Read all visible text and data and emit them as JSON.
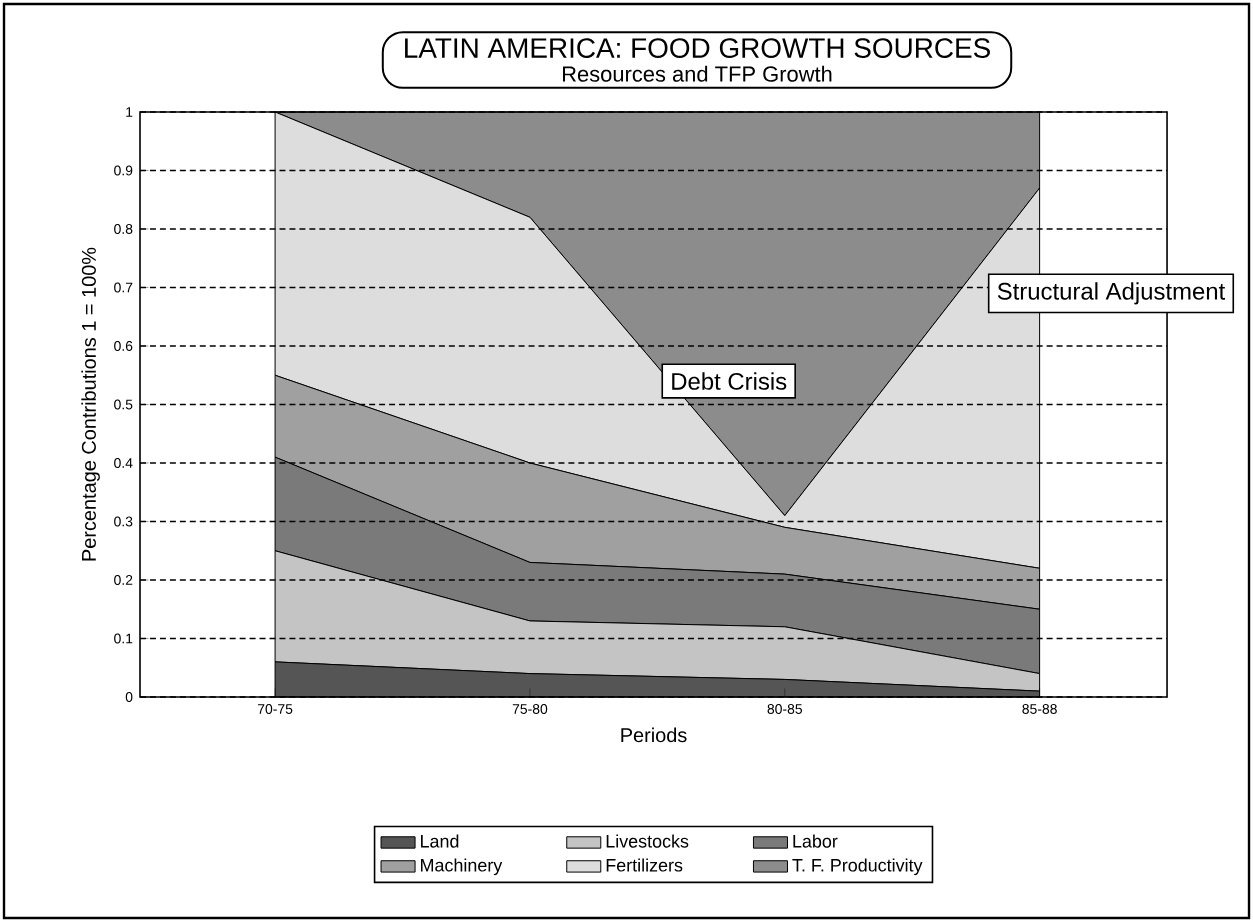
{
  "chart_data": {
    "type": "area",
    "stacked": true,
    "title": "LATIN AMERICA: FOOD GROWTH SOURCES",
    "subtitle": "Resources and TFP Growth",
    "xlabel": "Periods",
    "ylabel": "Percentage Contributions  1 = 100%",
    "categories": [
      "70-75",
      "75-80",
      "80-85",
      "85-88"
    ],
    "series": [
      {
        "name": "Land",
        "color": "#555555",
        "values": [
          0.06,
          0.04,
          0.03,
          0.01
        ]
      },
      {
        "name": "Livestocks",
        "color": "#c4c4c4",
        "values": [
          0.19,
          0.09,
          0.09,
          0.03
        ]
      },
      {
        "name": "Labor",
        "color": "#7a7a7a",
        "values": [
          0.16,
          0.1,
          0.09,
          0.11
        ]
      },
      {
        "name": "Machinery",
        "color": "#a0a0a0",
        "values": [
          0.14,
          0.17,
          0.08,
          0.07
        ]
      },
      {
        "name": "Fertilizers",
        "color": "#dddddd",
        "values": [
          0.45,
          0.42,
          0.02,
          0.65
        ]
      },
      {
        "name": "T. F. Productivity",
        "color": "#8c8c8c",
        "values": [
          0,
          0.18,
          0.69,
          0.13
        ]
      }
    ],
    "ylim": [
      0,
      1
    ],
    "yticks": [
      0,
      0.1,
      0.2,
      0.3,
      0.4,
      0.5,
      0.6,
      0.7,
      0.8,
      0.9,
      1
    ],
    "grid": "y",
    "legend": "bottom",
    "annotations": [
      "Debt Crisis",
      "Structural Adjustment"
    ]
  }
}
